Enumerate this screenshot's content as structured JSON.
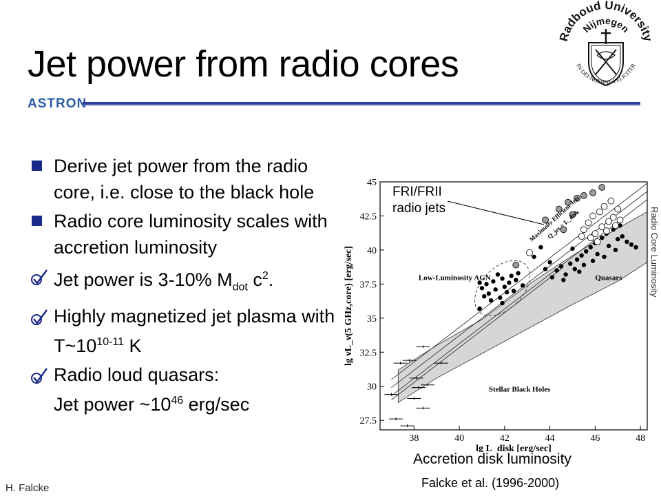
{
  "slide": {
    "title": "Jet power from radio cores",
    "astron_logo": "ASTRON",
    "university_logo": {
      "text_top": "Radboud University",
      "text_mid": "Nijmegen",
      "motto": "IN·DEI·NOMINE·FELICITER"
    },
    "bullets": [
      {
        "marker": "square",
        "text": "Derive jet power from the radio core, i.e. close to the black hole"
      },
      {
        "marker": "square",
        "text": "Radio core luminosity scales with accretion luminosity"
      },
      {
        "marker": "check",
        "pre": "Jet power is 3-10% M",
        "sub": "dot",
        "mid": " c",
        "sup": "2",
        "post": "."
      },
      {
        "marker": "check",
        "pre": "Highly magnetized jet plasma with T~10",
        "sup": "10-11",
        "post": " K"
      },
      {
        "marker": "check",
        "pre": "Radio loud quasars: ",
        "line2_pre": "Jet power  ~10",
        "sup": "46",
        "post": " erg/sec"
      }
    ],
    "side_label": "Radio Core Luminosity",
    "caption_x": "Accretion disk luminosity",
    "citation": "Falcke et al. (1996-2000)",
    "author": "H. Falcke"
  },
  "chart_data": {
    "type": "scatter",
    "xlabel": "lg L_disk [erg/sec]",
    "ylabel": "lg νL_ν(5 GHz,core) [erg/sec]",
    "xlim": [
      36.5,
      48.3
    ],
    "ylim": [
      26.8,
      45
    ],
    "xticks": [
      38,
      40,
      42,
      44,
      46,
      48
    ],
    "yticks": [
      27.5,
      30,
      32.5,
      35,
      37.5,
      40,
      42.5,
      45
    ],
    "annotations": [
      "FRI/FRII radio jets",
      "Maximally Efficient Jets",
      "Q_jet = L_disk",
      "Low-Luminosity AGN",
      "Quasars",
      "Stellar Black Holes"
    ],
    "series": [
      {
        "name": "",
        "marker": "filled",
        "points": [
          [
            41,
            37.2
          ],
          [
            41.2,
            37.5
          ],
          [
            41.3,
            36.8
          ],
          [
            41.5,
            37.7
          ],
          [
            41.6,
            37.1
          ],
          [
            41.8,
            36.5
          ],
          [
            41.9,
            37.9
          ],
          [
            42,
            37.3
          ],
          [
            42.1,
            36.9
          ],
          [
            42.2,
            37.6
          ],
          [
            42.3,
            38.1
          ],
          [
            42.4,
            37.0
          ],
          [
            41.4,
            36.3
          ],
          [
            41.7,
            38.2
          ],
          [
            42.5,
            37.8
          ],
          [
            41.1,
            36.6
          ],
          [
            42.6,
            38.3
          ],
          [
            41.9,
            36.1
          ],
          [
            40.9,
            37.6
          ],
          [
            42.8,
            37.4
          ],
          [
            44.3,
            38.5
          ],
          [
            44.5,
            38.8
          ],
          [
            44.7,
            38.2
          ],
          [
            44.9,
            39.0
          ],
          [
            45.1,
            38.6
          ],
          [
            45.2,
            39.3
          ],
          [
            45.4,
            39.6
          ],
          [
            45.5,
            38.9
          ],
          [
            45.6,
            39.9
          ],
          [
            45.8,
            40.2
          ],
          [
            46,
            40.5
          ],
          [
            46.1,
            39.7
          ],
          [
            46.3,
            40.9
          ],
          [
            46.5,
            41.2
          ],
          [
            46.6,
            40.3
          ],
          [
            46.8,
            41.5
          ],
          [
            47,
            40.8
          ],
          [
            47.2,
            41.0
          ],
          [
            47.4,
            40.6
          ],
          [
            47.6,
            40.4
          ],
          [
            47.8,
            40.2
          ],
          [
            44.1,
            38.0
          ],
          [
            44.6,
            37.8
          ],
          [
            45.3,
            38.4
          ],
          [
            45.9,
            39.2
          ],
          [
            46.4,
            39.5
          ],
          [
            47.1,
            41.8
          ],
          [
            46.9,
            40.0
          ],
          [
            44.0,
            39.1
          ],
          [
            43.8,
            38.6
          ],
          [
            40.9,
            35.7
          ],
          [
            43.3,
            39.5
          ],
          [
            43.6,
            40.2
          ],
          [
            45.0,
            40.1
          ]
        ]
      },
      {
        "name": "",
        "marker": "open",
        "points": [
          [
            45.5,
            41.5
          ],
          [
            45.7,
            42.0
          ],
          [
            45.9,
            42.5
          ],
          [
            46.0,
            41.2
          ],
          [
            46.2,
            42.8
          ],
          [
            46.3,
            41.7
          ],
          [
            46.4,
            43.2
          ],
          [
            46.6,
            42.1
          ],
          [
            46.7,
            43.6
          ],
          [
            46.8,
            42.4
          ],
          [
            47.0,
            43.0
          ],
          [
            47.1,
            42.2
          ],
          [
            45.8,
            40.9
          ],
          [
            46.1,
            40.6
          ],
          [
            45.4,
            41.0
          ],
          [
            46.5,
            41.4
          ],
          [
            43.1,
            39.8
          ],
          [
            46.9,
            41.8
          ]
        ]
      },
      {
        "name": "",
        "marker": "grey",
        "points": [
          [
            44.8,
            43.5
          ],
          [
            45.2,
            43.8
          ],
          [
            45.5,
            44.0
          ],
          [
            45.9,
            44.2
          ],
          [
            46.3,
            44.6
          ],
          [
            44.4,
            43.0
          ],
          [
            45.0,
            42.6
          ],
          [
            44.6,
            41.5
          ],
          [
            42.5,
            38.9
          ],
          [
            43.8,
            42.2
          ]
        ]
      },
      {
        "name": "",
        "marker": "errorbar",
        "points": [
          [
            37.4,
            31.7
          ],
          [
            37.8,
            31.9
          ],
          [
            38.1,
            30.6
          ],
          [
            38.4,
            32.9
          ],
          [
            38.6,
            30.1
          ],
          [
            39.2,
            31.7
          ],
          [
            38.0,
            29.1
          ],
          [
            37.0,
            29.4
          ],
          [
            37.2,
            27.6
          ],
          [
            38.4,
            28.4
          ],
          [
            37.7,
            27.1
          ],
          [
            38.2,
            29.9
          ]
        ]
      }
    ]
  }
}
